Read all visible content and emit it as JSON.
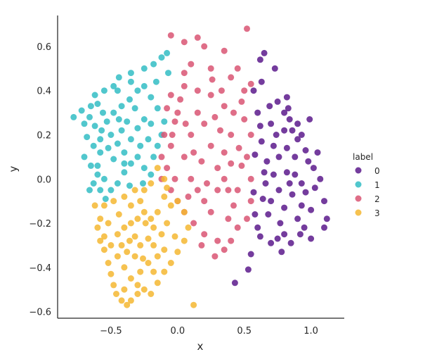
{
  "chart_data": {
    "type": "scatter",
    "title": "",
    "xlabel": "x",
    "ylabel": "y",
    "xlim": [
      -0.9,
      1.25
    ],
    "ylim": [
      -0.63,
      0.74
    ],
    "xticks": [
      -0.5,
      0.0,
      0.5,
      1.0
    ],
    "xtick_labels": [
      "−0.5",
      "0.0",
      "0.5",
      "1.0"
    ],
    "yticks": [
      -0.6,
      -0.4,
      -0.2,
      0.0,
      0.2,
      0.4,
      0.6
    ],
    "ytick_labels": [
      "−0.6",
      "−0.4",
      "−0.2",
      "0.0",
      "0.2",
      "0.4",
      "0.6"
    ],
    "grid": false,
    "legend": {
      "title": "label",
      "placement": "right",
      "entries": [
        {
          "label": "0",
          "color": "#5c1a8c"
        },
        {
          "label": "1",
          "color": "#33bdc4"
        },
        {
          "label": "2",
          "color": "#d95573"
        },
        {
          "label": "3",
          "color": "#f5b731"
        }
      ]
    },
    "series": [
      {
        "name": "0",
        "color": "#5c1a8c",
        "points": [
          [
            0.65,
            0.57
          ],
          [
            0.62,
            0.54
          ],
          [
            0.73,
            0.5
          ],
          [
            0.63,
            0.44
          ],
          [
            0.57,
            0.4
          ],
          [
            0.75,
            0.35
          ],
          [
            0.69,
            0.33
          ],
          [
            0.83,
            0.32
          ],
          [
            0.82,
            0.37
          ],
          [
            0.8,
            0.3
          ],
          [
            0.84,
            0.27
          ],
          [
            0.8,
            0.22
          ],
          [
            0.62,
            0.24
          ],
          [
            0.7,
            0.25
          ],
          [
            0.9,
            0.25
          ],
          [
            0.99,
            0.27
          ],
          [
            0.93,
            0.2
          ],
          [
            1.02,
            0.05
          ],
          [
            1.07,
            0.0
          ],
          [
            1.1,
            -0.1
          ],
          [
            1.12,
            -0.18
          ],
          [
            1.1,
            -0.22
          ],
          [
            1.0,
            -0.27
          ],
          [
            0.95,
            -0.22
          ],
          [
            0.9,
            -0.18
          ],
          [
            0.92,
            -0.25
          ],
          [
            0.85,
            -0.29
          ],
          [
            0.8,
            -0.25
          ],
          [
            0.75,
            -0.27
          ],
          [
            0.7,
            -0.29
          ],
          [
            0.6,
            -0.22
          ],
          [
            0.58,
            -0.16
          ],
          [
            0.64,
            -0.09
          ],
          [
            0.57,
            -0.06
          ],
          [
            0.65,
            0.03
          ],
          [
            0.58,
            0.11
          ],
          [
            0.63,
            0.17
          ],
          [
            0.72,
            0.15
          ],
          [
            0.76,
            0.1
          ],
          [
            0.82,
            0.14
          ],
          [
            0.88,
            0.1
          ],
          [
            0.88,
            0.02
          ],
          [
            0.93,
            -0.02
          ],
          [
            0.96,
            -0.06
          ],
          [
            0.98,
            0.08
          ],
          [
            0.86,
            -0.07
          ],
          [
            0.8,
            -0.13
          ],
          [
            0.76,
            -0.05
          ],
          [
            0.7,
            -0.1
          ],
          [
            0.72,
            0.02
          ],
          [
            0.67,
            0.08
          ],
          [
            0.68,
            -0.16
          ],
          [
            0.77,
            -0.2
          ],
          [
            0.82,
            0.03
          ],
          [
            0.93,
            -0.12
          ],
          [
            1.0,
            -0.14
          ],
          [
            1.03,
            -0.04
          ],
          [
            0.96,
            0.13
          ],
          [
            0.9,
            0.18
          ],
          [
            0.86,
            0.22
          ],
          [
            0.55,
            -0.34
          ],
          [
            0.53,
            -0.41
          ],
          [
            0.43,
            -0.47
          ],
          [
            0.62,
            -0.26
          ],
          [
            0.6,
            0.3
          ],
          [
            0.78,
            -0.33
          ],
          [
            1.05,
            0.12
          ],
          [
            0.84,
            -0.02
          ],
          [
            0.74,
            0.2
          ],
          [
            0.66,
            -0.02
          ]
        ]
      },
      {
        "name": "1",
        "color": "#33bdc4",
        "points": [
          [
            -0.08,
            0.57
          ],
          [
            -0.12,
            0.55
          ],
          [
            -0.18,
            0.52
          ],
          [
            -0.25,
            0.5
          ],
          [
            -0.35,
            0.48
          ],
          [
            -0.44,
            0.46
          ],
          [
            -0.48,
            0.42
          ],
          [
            -0.55,
            0.4
          ],
          [
            -0.62,
            0.38
          ],
          [
            -0.65,
            0.33
          ],
          [
            -0.72,
            0.31
          ],
          [
            -0.78,
            0.28
          ],
          [
            -0.7,
            0.25
          ],
          [
            -0.62,
            0.24
          ],
          [
            -0.57,
            0.22
          ],
          [
            -0.68,
            0.19
          ],
          [
            -0.63,
            0.15
          ],
          [
            -0.58,
            0.12
          ],
          [
            -0.7,
            0.1
          ],
          [
            -0.65,
            0.06
          ],
          [
            -0.6,
            0.02
          ],
          [
            -0.63,
            -0.02
          ],
          [
            -0.58,
            -0.05
          ],
          [
            -0.55,
            0.0
          ],
          [
            -0.5,
            -0.05
          ],
          [
            -0.45,
            -0.02
          ],
          [
            -0.4,
            0.03
          ],
          [
            -0.35,
            0.07
          ],
          [
            -0.3,
            0.1
          ],
          [
            -0.25,
            0.05
          ],
          [
            -0.2,
            0.02
          ],
          [
            -0.18,
            0.1
          ],
          [
            -0.15,
            0.15
          ],
          [
            -0.12,
            0.2
          ],
          [
            -0.1,
            0.26
          ],
          [
            -0.15,
            0.32
          ],
          [
            -0.2,
            0.37
          ],
          [
            -0.25,
            0.42
          ],
          [
            -0.3,
            0.4
          ],
          [
            -0.36,
            0.36
          ],
          [
            -0.42,
            0.33
          ],
          [
            -0.48,
            0.3
          ],
          [
            -0.53,
            0.26
          ],
          [
            -0.5,
            0.2
          ],
          [
            -0.45,
            0.16
          ],
          [
            -0.4,
            0.12
          ],
          [
            -0.35,
            0.18
          ],
          [
            -0.3,
            0.23
          ],
          [
            -0.25,
            0.27
          ],
          [
            -0.2,
            0.25
          ],
          [
            -0.48,
            0.09
          ],
          [
            -0.52,
            0.14
          ],
          [
            -0.56,
            0.3
          ],
          [
            -0.38,
            0.26
          ],
          [
            -0.42,
            0.22
          ],
          [
            -0.28,
            0.15
          ],
          [
            -0.22,
            0.18
          ],
          [
            -0.32,
            0.32
          ],
          [
            -0.16,
            0.44
          ],
          [
            -0.07,
            0.48
          ],
          [
            -0.6,
            0.34
          ],
          [
            -0.66,
            -0.05
          ],
          [
            -0.54,
            -0.09
          ],
          [
            -0.45,
            0.4
          ],
          [
            -0.35,
            0.44
          ],
          [
            -0.66,
            0.28
          ],
          [
            -0.6,
            0.06
          ],
          [
            -0.26,
            -0.02
          ],
          [
            -0.36,
            -0.03
          ],
          [
            -0.58,
            0.18
          ],
          [
            -0.44,
            0.27
          ],
          [
            -0.4,
            0.07
          ]
        ]
      },
      {
        "name": "2",
        "color": "#d95573",
        "points": [
          [
            -0.05,
            0.65
          ],
          [
            0.05,
            0.62
          ],
          [
            0.15,
            0.64
          ],
          [
            0.2,
            0.6
          ],
          [
            0.35,
            0.58
          ],
          [
            0.52,
            0.68
          ],
          [
            0.1,
            0.52
          ],
          [
            0.05,
            0.48
          ],
          [
            0.25,
            0.5
          ],
          [
            0.4,
            0.46
          ],
          [
            0.45,
            0.5
          ],
          [
            0.5,
            0.4
          ],
          [
            0.55,
            0.43
          ],
          [
            0.48,
            0.35
          ],
          [
            0.42,
            0.3
          ],
          [
            0.35,
            0.33
          ],
          [
            0.25,
            0.38
          ],
          [
            0.15,
            0.4
          ],
          [
            0.05,
            0.42
          ],
          [
            -0.05,
            0.38
          ],
          [
            -0.08,
            0.32
          ],
          [
            -0.02,
            0.26
          ],
          [
            -0.1,
            0.2
          ],
          [
            -0.05,
            0.15
          ],
          [
            -0.12,
            0.1
          ],
          [
            -0.08,
            0.05
          ],
          [
            -0.12,
            0.0
          ],
          [
            -0.05,
            -0.05
          ],
          [
            0.0,
            -0.1
          ],
          [
            0.05,
            -0.15
          ],
          [
            0.12,
            -0.2
          ],
          [
            0.2,
            -0.25
          ],
          [
            0.3,
            -0.28
          ],
          [
            0.35,
            -0.32
          ],
          [
            0.4,
            -0.28
          ],
          [
            0.45,
            -0.22
          ],
          [
            0.52,
            -0.18
          ],
          [
            0.55,
            -0.1
          ],
          [
            0.55,
            0.0
          ],
          [
            0.52,
            0.1
          ],
          [
            0.55,
            0.2
          ],
          [
            0.5,
            0.27
          ],
          [
            0.4,
            0.2
          ],
          [
            0.35,
            0.12
          ],
          [
            0.3,
            0.05
          ],
          [
            0.25,
            0.15
          ],
          [
            0.2,
            0.25
          ],
          [
            0.15,
            0.3
          ],
          [
            0.1,
            0.2
          ],
          [
            0.05,
            0.1
          ],
          [
            0.1,
            0.0
          ],
          [
            0.15,
            -0.05
          ],
          [
            0.2,
            -0.1
          ],
          [
            0.25,
            -0.15
          ],
          [
            0.3,
            -0.05
          ],
          [
            0.35,
            0.0
          ],
          [
            0.4,
            0.07
          ],
          [
            0.45,
            -0.05
          ],
          [
            0.42,
            -0.12
          ],
          [
            0.38,
            -0.18
          ],
          [
            0.28,
            0.28
          ],
          [
            0.0,
            0.3
          ],
          [
            -0.02,
            0.0
          ],
          [
            0.06,
            0.25
          ],
          [
            0.18,
            0.08
          ],
          [
            0.33,
            0.4
          ],
          [
            0.48,
            0.06
          ],
          [
            0.12,
            0.12
          ],
          [
            0.22,
            -0.02
          ],
          [
            0.26,
            0.45
          ],
          [
            0.46,
            0.14
          ],
          [
            0.08,
            -0.08
          ],
          [
            0.18,
            -0.3
          ],
          [
            0.28,
            -0.35
          ],
          [
            0.38,
            -0.05
          ],
          [
            0.32,
            0.22
          ],
          [
            0.02,
            0.36
          ],
          [
            -0.04,
            0.2
          ]
        ]
      },
      {
        "name": "3",
        "color": "#f5b731",
        "points": [
          [
            -0.15,
            0.05
          ],
          [
            -0.1,
            0.0
          ],
          [
            -0.2,
            -0.02
          ],
          [
            -0.25,
            -0.05
          ],
          [
            -0.32,
            -0.05
          ],
          [
            -0.4,
            -0.08
          ],
          [
            -0.48,
            -0.1
          ],
          [
            -0.55,
            -0.12
          ],
          [
            -0.62,
            -0.12
          ],
          [
            -0.58,
            -0.18
          ],
          [
            -0.6,
            -0.22
          ],
          [
            -0.58,
            -0.28
          ],
          [
            -0.55,
            -0.32
          ],
          [
            -0.52,
            -0.38
          ],
          [
            -0.5,
            -0.43
          ],
          [
            -0.48,
            -0.48
          ],
          [
            -0.46,
            -0.52
          ],
          [
            -0.42,
            -0.55
          ],
          [
            -0.38,
            -0.57
          ],
          [
            -0.35,
            -0.55
          ],
          [
            -0.3,
            -0.52
          ],
          [
            -0.25,
            -0.5
          ],
          [
            -0.2,
            -0.52
          ],
          [
            -0.15,
            -0.47
          ],
          [
            -0.1,
            -0.42
          ],
          [
            -0.05,
            -0.38
          ],
          [
            0.0,
            -0.33
          ],
          [
            0.05,
            -0.28
          ],
          [
            0.08,
            -0.22
          ],
          [
            0.05,
            -0.15
          ],
          [
            0.0,
            -0.1
          ],
          [
            -0.05,
            -0.12
          ],
          [
            -0.1,
            -0.08
          ],
          [
            -0.15,
            -0.15
          ],
          [
            -0.2,
            -0.18
          ],
          [
            -0.25,
            -0.15
          ],
          [
            -0.3,
            -0.18
          ],
          [
            -0.35,
            -0.2
          ],
          [
            -0.4,
            -0.22
          ],
          [
            -0.45,
            -0.25
          ],
          [
            -0.42,
            -0.3
          ],
          [
            -0.38,
            -0.33
          ],
          [
            -0.32,
            -0.35
          ],
          [
            -0.28,
            -0.3
          ],
          [
            -0.22,
            -0.27
          ],
          [
            -0.18,
            -0.3
          ],
          [
            -0.12,
            -0.25
          ],
          [
            -0.08,
            -0.2
          ],
          [
            -0.15,
            -0.35
          ],
          [
            -0.22,
            -0.38
          ],
          [
            -0.28,
            -0.42
          ],
          [
            -0.35,
            -0.45
          ],
          [
            -0.4,
            -0.4
          ],
          [
            -0.45,
            -0.35
          ],
          [
            -0.5,
            -0.3
          ],
          [
            -0.52,
            -0.2
          ],
          [
            -0.35,
            -0.12
          ],
          [
            -0.28,
            -0.1
          ],
          [
            -0.18,
            -0.22
          ],
          [
            -0.1,
            -0.32
          ],
          [
            0.12,
            -0.57
          ],
          [
            -0.55,
            -0.26
          ],
          [
            -0.44,
            -0.16
          ],
          [
            -0.32,
            -0.26
          ],
          [
            -0.24,
            -0.2
          ],
          [
            -0.08,
            -0.04
          ],
          [
            -0.3,
            -0.48
          ],
          [
            -0.18,
            -0.42
          ],
          [
            -0.02,
            -0.26
          ],
          [
            -0.4,
            -0.5
          ],
          [
            -0.36,
            -0.28
          ],
          [
            -0.26,
            -0.36
          ]
        ]
      }
    ]
  }
}
